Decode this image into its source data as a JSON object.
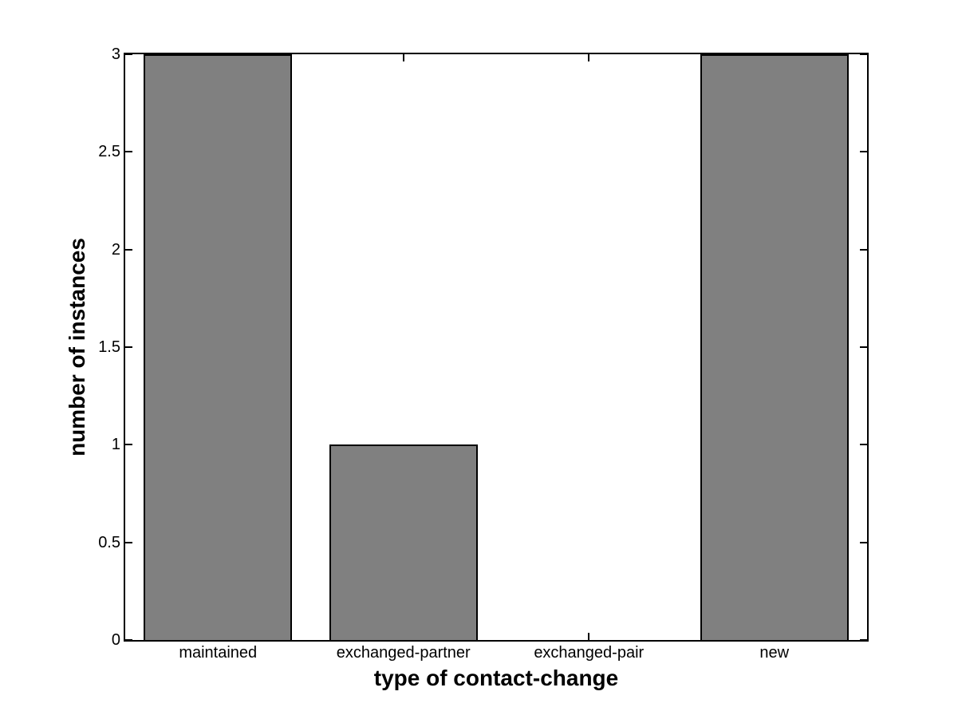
{
  "chart_data": {
    "type": "bar",
    "title": "",
    "categories": [
      "maintained",
      "exchanged-partner",
      "exchanged-pair",
      "new"
    ],
    "values": [
      3,
      1,
      0,
      3
    ],
    "xlabel": "type of contact-change",
    "ylabel": "number of instances",
    "ylim": [
      0,
      3
    ],
    "yticks": [
      0,
      0.5,
      1,
      1.5,
      2,
      2.5,
      3
    ],
    "ytick_labels": [
      "0",
      "0.5",
      "1",
      "1.5",
      "2",
      "2.5",
      "3"
    ],
    "xlim": [
      0.5,
      4.5
    ],
    "bar_width_fraction": 0.8,
    "grid": false,
    "legend": null,
    "box": true,
    "tick_direction": "in",
    "bar_color": "#808080",
    "bar_edge_color": "#000000",
    "axis_color": "#000000",
    "background_color": "#ffffff"
  }
}
